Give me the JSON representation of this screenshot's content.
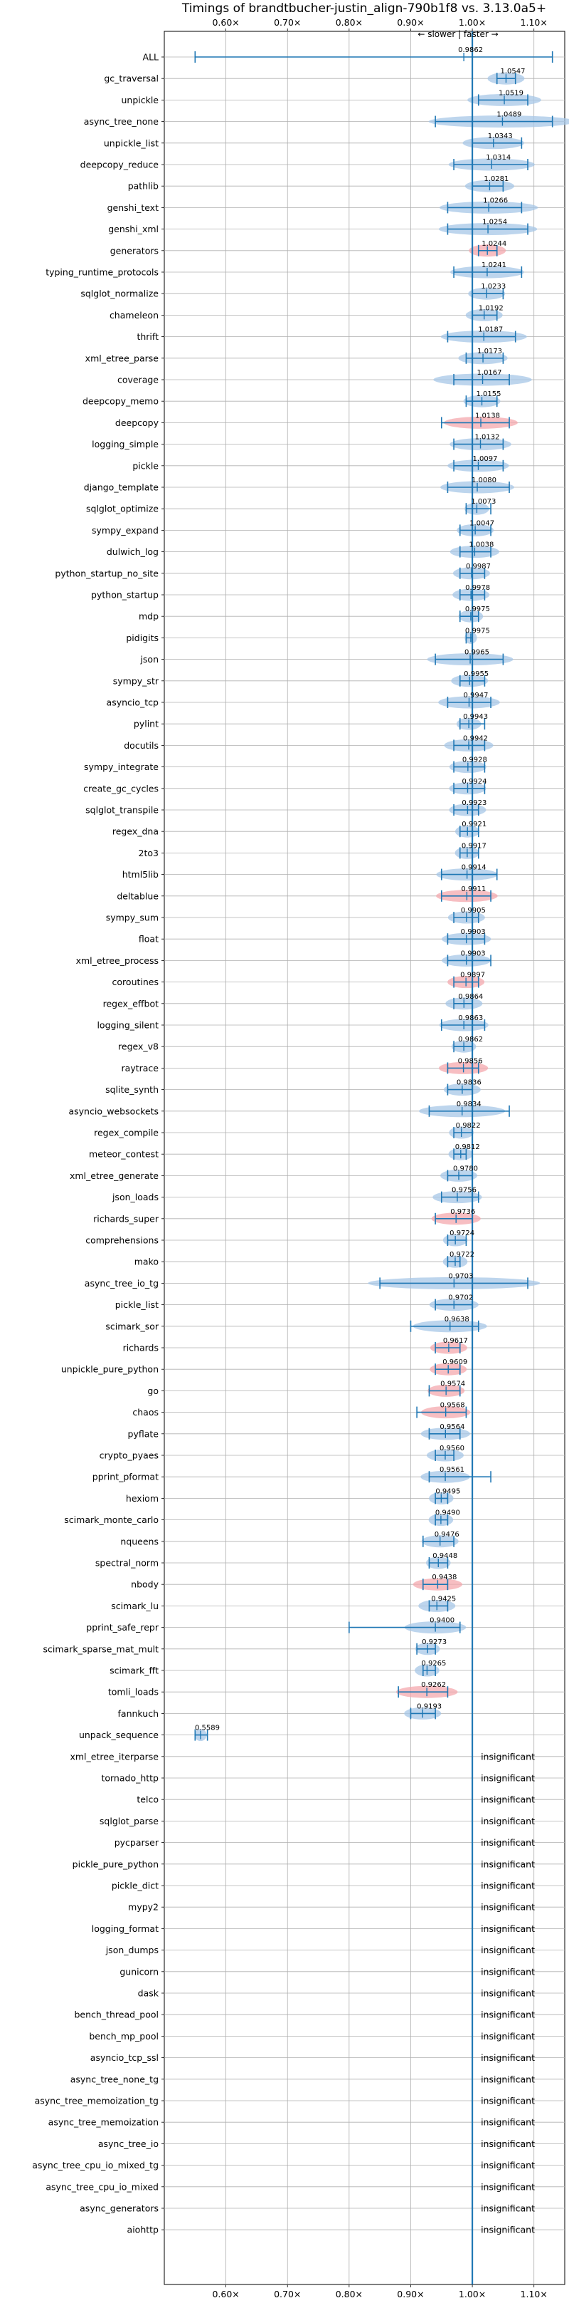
{
  "chart_data": {
    "type": "violin",
    "title": "Timings of brandtbucher-justin_align-790b1f8 vs. 3.13.0a5+",
    "subtitle": "← slower | faster →",
    "xlim": [
      0.5,
      1.15
    ],
    "x_ticks": [
      0.6,
      0.7,
      0.8,
      0.9,
      1.0,
      1.1
    ],
    "x_tick_labels": [
      "0.60×",
      "0.70×",
      "0.80×",
      "0.90×",
      "1.00×",
      "1.10×"
    ],
    "reference_line": 1.0,
    "grid": true,
    "colors": {
      "faster": "#a7c7e7",
      "slower": "#f4a8ad",
      "line": "#1f77b4"
    },
    "insignificant_label": "insignificant",
    "benchmarks": [
      {
        "name": "ALL",
        "value": 0.9862,
        "lo": 0.55,
        "hi": 1.13,
        "width": 0.0,
        "color": "faster"
      },
      {
        "name": "gc_traversal",
        "value": 1.0547,
        "lo": 1.04,
        "hi": 1.07,
        "width": 0.03,
        "color": "faster"
      },
      {
        "name": "unpickle",
        "value": 1.0519,
        "lo": 1.01,
        "hi": 1.09,
        "width": 0.06,
        "color": "faster"
      },
      {
        "name": "async_tree_none",
        "value": 1.0489,
        "lo": 0.94,
        "hi": 1.13,
        "width": 0.12,
        "color": "faster"
      },
      {
        "name": "unpickle_list",
        "value": 1.0343,
        "lo": 1.0,
        "hi": 1.08,
        "width": 0.05,
        "color": "faster"
      },
      {
        "name": "deepcopy_reduce",
        "value": 1.0314,
        "lo": 0.97,
        "hi": 1.09,
        "width": 0.07,
        "color": "faster"
      },
      {
        "name": "pathlib",
        "value": 1.0281,
        "lo": 1.0,
        "hi": 1.05,
        "width": 0.04,
        "color": "faster"
      },
      {
        "name": "genshi_text",
        "value": 1.0266,
        "lo": 0.96,
        "hi": 1.08,
        "width": 0.08,
        "color": "faster"
      },
      {
        "name": "genshi_xml",
        "value": 1.0254,
        "lo": 0.96,
        "hi": 1.09,
        "width": 0.08,
        "color": "faster"
      },
      {
        "name": "generators",
        "value": 1.0244,
        "lo": 1.01,
        "hi": 1.04,
        "width": 0.03,
        "color": "slower"
      },
      {
        "name": "typing_runtime_protocols",
        "value": 1.0241,
        "lo": 0.97,
        "hi": 1.08,
        "width": 0.06,
        "color": "faster"
      },
      {
        "name": "sqlglot_normalize",
        "value": 1.0233,
        "lo": 1.0,
        "hi": 1.05,
        "width": 0.03,
        "color": "faster"
      },
      {
        "name": "chameleon",
        "value": 1.0192,
        "lo": 1.0,
        "hi": 1.04,
        "width": 0.03,
        "color": "faster"
      },
      {
        "name": "thrift",
        "value": 1.0187,
        "lo": 0.96,
        "hi": 1.07,
        "width": 0.07,
        "color": "faster"
      },
      {
        "name": "xml_etree_parse",
        "value": 1.0173,
        "lo": 0.99,
        "hi": 1.05,
        "width": 0.04,
        "color": "faster"
      },
      {
        "name": "coverage",
        "value": 1.0167,
        "lo": 0.97,
        "hi": 1.06,
        "width": 0.08,
        "color": "faster"
      },
      {
        "name": "deepcopy_memo",
        "value": 1.0155,
        "lo": 0.99,
        "hi": 1.04,
        "width": 0.03,
        "color": "faster"
      },
      {
        "name": "deepcopy",
        "value": 1.0138,
        "lo": 0.95,
        "hi": 1.06,
        "width": 0.06,
        "color": "slower"
      },
      {
        "name": "logging_simple",
        "value": 1.0132,
        "lo": 0.97,
        "hi": 1.05,
        "width": 0.05,
        "color": "faster"
      },
      {
        "name": "pickle",
        "value": 1.0097,
        "lo": 0.97,
        "hi": 1.05,
        "width": 0.05,
        "color": "faster"
      },
      {
        "name": "django_template",
        "value": 1.008,
        "lo": 0.96,
        "hi": 1.06,
        "width": 0.06,
        "color": "faster"
      },
      {
        "name": "sqlglot_optimize",
        "value": 1.0073,
        "lo": 0.99,
        "hi": 1.03,
        "width": 0.02,
        "color": "faster"
      },
      {
        "name": "sympy_expand",
        "value": 1.0047,
        "lo": 0.98,
        "hi": 1.03,
        "width": 0.03,
        "color": "faster"
      },
      {
        "name": "dulwich_log",
        "value": 1.0038,
        "lo": 0.98,
        "hi": 1.03,
        "width": 0.04,
        "color": "faster"
      },
      {
        "name": "python_startup_no_site",
        "value": 0.9987,
        "lo": 0.98,
        "hi": 1.02,
        "width": 0.03,
        "color": "faster"
      },
      {
        "name": "python_startup",
        "value": 0.9978,
        "lo": 0.98,
        "hi": 1.02,
        "width": 0.03,
        "color": "faster"
      },
      {
        "name": "mdp",
        "value": 0.9975,
        "lo": 0.98,
        "hi": 1.01,
        "width": 0.02,
        "color": "faster"
      },
      {
        "name": "pidigits",
        "value": 0.9975,
        "lo": 0.99,
        "hi": 1.0,
        "width": 0.01,
        "color": "faster"
      },
      {
        "name": "json",
        "value": 0.9965,
        "lo": 0.94,
        "hi": 1.05,
        "width": 0.07,
        "color": "faster"
      },
      {
        "name": "sympy_str",
        "value": 0.9955,
        "lo": 0.98,
        "hi": 1.02,
        "width": 0.03,
        "color": "faster"
      },
      {
        "name": "asyncio_tcp",
        "value": 0.9947,
        "lo": 0.96,
        "hi": 1.03,
        "width": 0.05,
        "color": "faster"
      },
      {
        "name": "pylint",
        "value": 0.9943,
        "lo": 0.98,
        "hi": 1.02,
        "width": 0.02,
        "color": "faster"
      },
      {
        "name": "docutils",
        "value": 0.9942,
        "lo": 0.97,
        "hi": 1.02,
        "width": 0.04,
        "color": "faster"
      },
      {
        "name": "sympy_integrate",
        "value": 0.9928,
        "lo": 0.97,
        "hi": 1.02,
        "width": 0.03,
        "color": "faster"
      },
      {
        "name": "create_gc_cycles",
        "value": 0.9924,
        "lo": 0.97,
        "hi": 1.02,
        "width": 0.03,
        "color": "faster"
      },
      {
        "name": "sqlglot_transpile",
        "value": 0.9923,
        "lo": 0.97,
        "hi": 1.01,
        "width": 0.03,
        "color": "faster"
      },
      {
        "name": "regex_dna",
        "value": 0.9921,
        "lo": 0.98,
        "hi": 1.01,
        "width": 0.02,
        "color": "faster"
      },
      {
        "name": "2to3",
        "value": 0.9917,
        "lo": 0.98,
        "hi": 1.01,
        "width": 0.02,
        "color": "faster"
      },
      {
        "name": "html5lib",
        "value": 0.9914,
        "lo": 0.95,
        "hi": 1.04,
        "width": 0.05,
        "color": "faster"
      },
      {
        "name": "deltablue",
        "value": 0.9911,
        "lo": 0.95,
        "hi": 1.03,
        "width": 0.05,
        "color": "slower"
      },
      {
        "name": "sympy_sum",
        "value": 0.9905,
        "lo": 0.97,
        "hi": 1.01,
        "width": 0.03,
        "color": "faster"
      },
      {
        "name": "float",
        "value": 0.9903,
        "lo": 0.96,
        "hi": 1.02,
        "width": 0.04,
        "color": "faster"
      },
      {
        "name": "xml_etree_process",
        "value": 0.9903,
        "lo": 0.96,
        "hi": 1.03,
        "width": 0.04,
        "color": "faster"
      },
      {
        "name": "coroutines",
        "value": 0.9897,
        "lo": 0.97,
        "hi": 1.01,
        "width": 0.03,
        "color": "slower"
      },
      {
        "name": "regex_effbot",
        "value": 0.9864,
        "lo": 0.97,
        "hi": 1.0,
        "width": 0.03,
        "color": "faster"
      },
      {
        "name": "logging_silent",
        "value": 0.9863,
        "lo": 0.95,
        "hi": 1.02,
        "width": 0.04,
        "color": "faster"
      },
      {
        "name": "regex_v8",
        "value": 0.9862,
        "lo": 0.97,
        "hi": 1.0,
        "width": 0.02,
        "color": "faster"
      },
      {
        "name": "raytrace",
        "value": 0.9856,
        "lo": 0.96,
        "hi": 1.01,
        "width": 0.04,
        "color": "slower"
      },
      {
        "name": "sqlite_synth",
        "value": 0.9836,
        "lo": 0.96,
        "hi": 1.0,
        "width": 0.03,
        "color": "faster"
      },
      {
        "name": "asyncio_websockets",
        "value": 0.9834,
        "lo": 0.93,
        "hi": 1.06,
        "width": 0.07,
        "color": "faster"
      },
      {
        "name": "regex_compile",
        "value": 0.9822,
        "lo": 0.97,
        "hi": 1.0,
        "width": 0.02,
        "color": "faster"
      },
      {
        "name": "meteor_contest",
        "value": 0.9812,
        "lo": 0.97,
        "hi": 0.99,
        "width": 0.02,
        "color": "faster"
      },
      {
        "name": "xml_etree_generate",
        "value": 0.978,
        "lo": 0.96,
        "hi": 1.0,
        "width": 0.03,
        "color": "faster"
      },
      {
        "name": "json_loads",
        "value": 0.9756,
        "lo": 0.95,
        "hi": 1.01,
        "width": 0.04,
        "color": "faster"
      },
      {
        "name": "richards_super",
        "value": 0.9736,
        "lo": 0.94,
        "hi": 1.0,
        "width": 0.04,
        "color": "slower"
      },
      {
        "name": "comprehensions",
        "value": 0.9724,
        "lo": 0.96,
        "hi": 0.99,
        "width": 0.02,
        "color": "faster"
      },
      {
        "name": "mako",
        "value": 0.9722,
        "lo": 0.96,
        "hi": 0.98,
        "width": 0.02,
        "color": "faster"
      },
      {
        "name": "async_tree_io_tg",
        "value": 0.9703,
        "lo": 0.85,
        "hi": 1.09,
        "width": 0.14,
        "color": "faster"
      },
      {
        "name": "pickle_list",
        "value": 0.9702,
        "lo": 0.94,
        "hi": 1.0,
        "width": 0.04,
        "color": "faster"
      },
      {
        "name": "scimark_sor",
        "value": 0.9638,
        "lo": 0.9,
        "hi": 1.01,
        "width": 0.06,
        "color": "faster"
      },
      {
        "name": "richards",
        "value": 0.9617,
        "lo": 0.94,
        "hi": 0.98,
        "width": 0.03,
        "color": "slower"
      },
      {
        "name": "unpickle_pure_python",
        "value": 0.9609,
        "lo": 0.94,
        "hi": 0.98,
        "width": 0.03,
        "color": "slower"
      },
      {
        "name": "go",
        "value": 0.9574,
        "lo": 0.93,
        "hi": 0.98,
        "width": 0.03,
        "color": "slower"
      },
      {
        "name": "chaos",
        "value": 0.9568,
        "lo": 0.91,
        "hi": 0.99,
        "width": 0.04,
        "color": "slower"
      },
      {
        "name": "pyflate",
        "value": 0.9564,
        "lo": 0.93,
        "hi": 0.98,
        "width": 0.04,
        "color": "faster"
      },
      {
        "name": "crypto_pyaes",
        "value": 0.956,
        "lo": 0.94,
        "hi": 0.97,
        "width": 0.03,
        "color": "faster"
      },
      {
        "name": "pprint_pformat",
        "value": 0.9561,
        "lo": 0.93,
        "hi": 1.03,
        "width": 0.04,
        "color": "faster"
      },
      {
        "name": "hexiom",
        "value": 0.9495,
        "lo": 0.94,
        "hi": 0.96,
        "width": 0.02,
        "color": "faster"
      },
      {
        "name": "scimark_monte_carlo",
        "value": 0.949,
        "lo": 0.94,
        "hi": 0.96,
        "width": 0.02,
        "color": "faster"
      },
      {
        "name": "nqueens",
        "value": 0.9476,
        "lo": 0.92,
        "hi": 0.97,
        "width": 0.03,
        "color": "faster"
      },
      {
        "name": "spectral_norm",
        "value": 0.9448,
        "lo": 0.93,
        "hi": 0.96,
        "width": 0.02,
        "color": "faster"
      },
      {
        "name": "nbody",
        "value": 0.9438,
        "lo": 0.92,
        "hi": 0.96,
        "width": 0.04,
        "color": "slower"
      },
      {
        "name": "scimark_lu",
        "value": 0.9425,
        "lo": 0.93,
        "hi": 0.96,
        "width": 0.03,
        "color": "faster"
      },
      {
        "name": "pprint_safe_repr",
        "value": 0.94,
        "lo": 0.8,
        "hi": 0.98,
        "width": 0.05,
        "color": "faster"
      },
      {
        "name": "scimark_sparse_mat_mult",
        "value": 0.9273,
        "lo": 0.91,
        "hi": 0.94,
        "width": 0.02,
        "color": "faster"
      },
      {
        "name": "scimark_fft",
        "value": 0.9265,
        "lo": 0.92,
        "hi": 0.94,
        "width": 0.02,
        "color": "faster"
      },
      {
        "name": "tomli_loads",
        "value": 0.9262,
        "lo": 0.88,
        "hi": 0.96,
        "width": 0.05,
        "color": "slower"
      },
      {
        "name": "fannkuch",
        "value": 0.9193,
        "lo": 0.9,
        "hi": 0.94,
        "width": 0.03,
        "color": "faster"
      },
      {
        "name": "unpack_sequence",
        "value": 0.5589,
        "lo": 0.55,
        "hi": 0.57,
        "width": 0.01,
        "color": "faster"
      },
      {
        "name": "xml_etree_iterparse",
        "insignificant": true
      },
      {
        "name": "tornado_http",
        "insignificant": true
      },
      {
        "name": "telco",
        "insignificant": true
      },
      {
        "name": "sqlglot_parse",
        "insignificant": true
      },
      {
        "name": "pycparser",
        "insignificant": true
      },
      {
        "name": "pickle_pure_python",
        "insignificant": true
      },
      {
        "name": "pickle_dict",
        "insignificant": true
      },
      {
        "name": "mypy2",
        "insignificant": true
      },
      {
        "name": "logging_format",
        "insignificant": true
      },
      {
        "name": "json_dumps",
        "insignificant": true
      },
      {
        "name": "gunicorn",
        "insignificant": true
      },
      {
        "name": "dask",
        "insignificant": true
      },
      {
        "name": "bench_thread_pool",
        "insignificant": true
      },
      {
        "name": "bench_mp_pool",
        "insignificant": true
      },
      {
        "name": "asyncio_tcp_ssl",
        "insignificant": true
      },
      {
        "name": "async_tree_none_tg",
        "insignificant": true
      },
      {
        "name": "async_tree_memoization_tg",
        "insignificant": true
      },
      {
        "name": "async_tree_memoization",
        "insignificant": true
      },
      {
        "name": "async_tree_io",
        "insignificant": true
      },
      {
        "name": "async_tree_cpu_io_mixed_tg",
        "insignificant": true
      },
      {
        "name": "async_tree_cpu_io_mixed",
        "insignificant": true
      },
      {
        "name": "async_generators",
        "insignificant": true
      },
      {
        "name": "aiohttp",
        "insignificant": true
      }
    ]
  }
}
